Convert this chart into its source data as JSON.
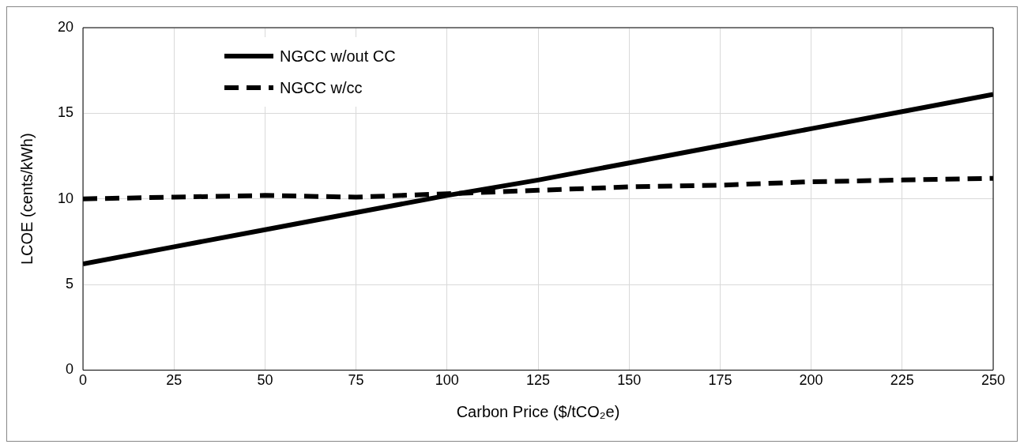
{
  "chart_data": {
    "type": "line",
    "xlabel": "Carbon Price ($/tCO₂e)",
    "ylabel": "LCOE (cents/kWh)",
    "x": [
      0,
      25,
      50,
      75,
      100,
      125,
      150,
      175,
      200,
      225,
      250
    ],
    "series": [
      {
        "name": "NGCC w/out CC",
        "color": "#000000",
        "line_style": "solid",
        "values": [
          6.2,
          7.2,
          8.2,
          9.2,
          10.2,
          11.1,
          12.1,
          13.1,
          14.1,
          15.1,
          16.1
        ]
      },
      {
        "name": "NGCC w/cc",
        "color": "#000000",
        "line_style": "dashed",
        "values": [
          10.0,
          10.1,
          10.2,
          10.1,
          10.3,
          10.5,
          10.7,
          10.8,
          11.0,
          11.1,
          11.2
        ]
      }
    ],
    "xlim": [
      0,
      250
    ],
    "xticks": [
      0,
      25,
      50,
      75,
      100,
      125,
      150,
      175,
      200,
      225,
      250
    ],
    "ylim": [
      0,
      20
    ],
    "yticks": [
      0,
      5,
      10,
      15,
      20
    ],
    "grid": true,
    "legend": "top left",
    "marker": "none"
  }
}
